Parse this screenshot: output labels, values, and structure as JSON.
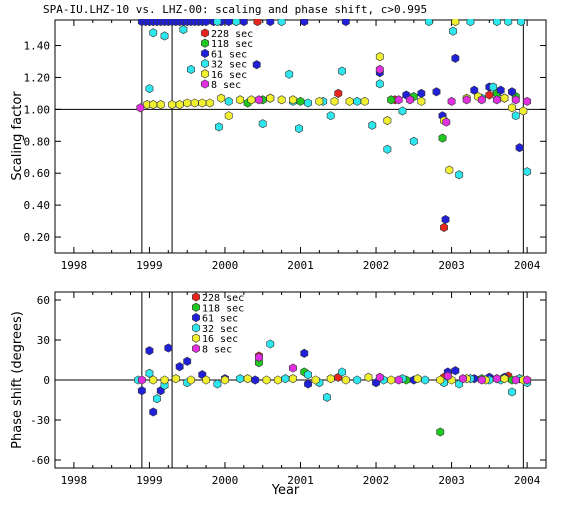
{
  "figure": {
    "title": "SPA-IU.LHZ-10 vs. LHZ-00: scaling and phase shift, c>0.995"
  },
  "chart_data": [
    {
      "type": "scatter",
      "ylabel": "Scaling factor",
      "xlabel": "",
      "xlim": [
        1997.75,
        2004.25
      ],
      "ylim": [
        0.1,
        1.56
      ],
      "x_ticks": [
        1998,
        1999,
        2000,
        2001,
        2002,
        2003,
        2004
      ],
      "y_ticks": [
        "0.20",
        "0.40",
        "0.60",
        "0.80",
        "1.00",
        "1.20",
        "1.40"
      ],
      "reference_line": 1.0,
      "vertical_lines": [
        1998.9,
        1999.3,
        2003.95
      ],
      "legend": [
        {
          "label": "228 sec",
          "color": "#e8261e"
        },
        {
          "label": "118 sec",
          "color": "#1ec81e"
        },
        {
          "label": "61 sec",
          "color": "#2020d8"
        },
        {
          "label": "32 sec",
          "color": "#2ee6ee"
        },
        {
          "label": "16 sec",
          "color": "#f0f030"
        },
        {
          "label": "8 sec",
          "color": "#e030e0"
        }
      ],
      "series": [
        {
          "period": "228 sec",
          "color": "#e8261e",
          "points": [
            [
              2000.43,
              1.55
            ],
            [
              2001.5,
              1.1
            ],
            [
              2002.25,
              1.06
            ],
            [
              2002.9,
              0.26
            ],
            [
              2003.5,
              1.09
            ],
            [
              2003.7,
              1.07
            ]
          ]
        },
        {
          "period": "118 sec",
          "color": "#1ec81e",
          "points": [
            [
              2000.3,
              1.04
            ],
            [
              2000.5,
              1.06
            ],
            [
              2001.0,
              1.05
            ],
            [
              2002.2,
              1.06
            ],
            [
              2002.5,
              1.08
            ],
            [
              2002.88,
              0.82
            ],
            [
              2003.6,
              1.1
            ],
            [
              2003.85,
              1.08
            ]
          ]
        },
        {
          "period": "61 sec",
          "color": "#2020d8",
          "points": [
            [
              1998.9,
              1.55
            ],
            [
              1998.95,
              1.55
            ],
            [
              1999.0,
              1.55
            ],
            [
              1999.05,
              1.55
            ],
            [
              1999.1,
              1.55
            ],
            [
              1999.15,
              1.55
            ],
            [
              1999.2,
              1.55
            ],
            [
              1999.25,
              1.55
            ],
            [
              1999.3,
              1.55
            ],
            [
              1999.35,
              1.55
            ],
            [
              1999.4,
              1.55
            ],
            [
              1999.45,
              1.55
            ],
            [
              1999.5,
              1.55
            ],
            [
              1999.55,
              1.55
            ],
            [
              1999.6,
              1.55
            ],
            [
              1999.65,
              1.55
            ],
            [
              1999.7,
              1.55
            ],
            [
              1999.75,
              1.55
            ],
            [
              1999.85,
              1.55
            ],
            [
              1999.95,
              1.55
            ],
            [
              2000.05,
              1.55
            ],
            [
              2000.15,
              1.55
            ],
            [
              2000.25,
              1.55
            ],
            [
              2000.6,
              1.55
            ],
            [
              2001.05,
              1.55
            ],
            [
              2001.6,
              1.55
            ],
            [
              2000.42,
              1.28
            ],
            [
              2002.05,
              1.23
            ],
            [
              2002.4,
              1.09
            ],
            [
              2002.6,
              1.1
            ],
            [
              2002.8,
              1.11
            ],
            [
              2002.88,
              0.96
            ],
            [
              2002.92,
              0.31
            ],
            [
              2003.05,
              1.32
            ],
            [
              2003.3,
              1.12
            ],
            [
              2003.5,
              1.14
            ],
            [
              2003.65,
              1.12
            ],
            [
              2003.8,
              1.11
            ],
            [
              2003.9,
              0.76
            ]
          ]
        },
        {
          "period": "32 sec",
          "color": "#2ee6ee",
          "points": [
            [
              1999.0,
              1.13
            ],
            [
              1999.05,
              1.48
            ],
            [
              1999.2,
              1.46
            ],
            [
              1999.45,
              1.5
            ],
            [
              1999.55,
              1.25
            ],
            [
              1999.9,
              1.55
            ],
            [
              1999.92,
              0.89
            ],
            [
              2000.05,
              1.05
            ],
            [
              2000.15,
              1.55
            ],
            [
              2000.5,
              0.91
            ],
            [
              2000.6,
              1.07
            ],
            [
              2000.75,
              1.55
            ],
            [
              2000.85,
              1.22
            ],
            [
              2000.9,
              1.05
            ],
            [
              2000.98,
              0.88
            ],
            [
              2001.1,
              1.04
            ],
            [
              2001.3,
              1.05
            ],
            [
              2001.4,
              0.96
            ],
            [
              2001.55,
              1.24
            ],
            [
              2001.75,
              1.05
            ],
            [
              2001.95,
              0.9
            ],
            [
              2002.05,
              1.16
            ],
            [
              2002.15,
              0.75
            ],
            [
              2002.35,
              0.99
            ],
            [
              2002.5,
              0.8
            ],
            [
              2002.7,
              1.55
            ],
            [
              2003.02,
              1.49
            ],
            [
              2003.1,
              0.59
            ],
            [
              2003.25,
              1.55
            ],
            [
              2003.4,
              1.07
            ],
            [
              2003.55,
              1.14
            ],
            [
              2003.6,
              1.55
            ],
            [
              2003.75,
              1.55
            ],
            [
              2003.85,
              0.96
            ],
            [
              2003.92,
              1.55
            ],
            [
              2004.0,
              0.61
            ]
          ]
        },
        {
          "period": "16 sec",
          "color": "#f0f030",
          "points": [
            [
              1998.97,
              1.03
            ],
            [
              1999.05,
              1.03
            ],
            [
              1999.15,
              1.03
            ],
            [
              1999.3,
              1.03
            ],
            [
              1999.4,
              1.03
            ],
            [
              1999.5,
              1.04
            ],
            [
              1999.6,
              1.04
            ],
            [
              1999.7,
              1.04
            ],
            [
              1999.8,
              1.04
            ],
            [
              1999.95,
              1.07
            ],
            [
              2000.05,
              0.96
            ],
            [
              2000.2,
              1.06
            ],
            [
              2000.35,
              1.06
            ],
            [
              2000.6,
              1.07
            ],
            [
              2000.75,
              1.06
            ],
            [
              2000.9,
              1.06
            ],
            [
              2001.25,
              1.05
            ],
            [
              2001.45,
              1.05
            ],
            [
              2001.65,
              1.05
            ],
            [
              2001.85,
              1.05
            ],
            [
              2002.05,
              1.33
            ],
            [
              2002.15,
              0.93
            ],
            [
              2002.6,
              1.05
            ],
            [
              2002.9,
              0.93
            ],
            [
              2002.97,
              0.62
            ],
            [
              2003.05,
              1.55
            ],
            [
              2003.2,
              1.07
            ],
            [
              2003.35,
              1.08
            ],
            [
              2003.7,
              1.07
            ],
            [
              2003.8,
              1.01
            ],
            [
              2003.95,
              0.99
            ]
          ]
        },
        {
          "period": "8 sec",
          "color": "#e030e0",
          "points": [
            [
              1998.88,
              1.01
            ],
            [
              2000.45,
              1.06
            ],
            [
              2002.05,
              1.25
            ],
            [
              2002.3,
              1.06
            ],
            [
              2002.45,
              1.06
            ],
            [
              2002.93,
              0.92
            ],
            [
              2003.0,
              1.05
            ],
            [
              2003.2,
              1.06
            ],
            [
              2003.4,
              1.06
            ],
            [
              2003.6,
              1.06
            ],
            [
              2003.85,
              1.06
            ],
            [
              2004.0,
              1.05
            ]
          ]
        }
      ]
    },
    {
      "type": "scatter",
      "ylabel": "Phase shift (degrees)",
      "xlabel": "Year",
      "xlim": [
        1997.75,
        2004.25
      ],
      "ylim": [
        -66,
        66
      ],
      "x_ticks": [
        1998,
        1999,
        2000,
        2001,
        2002,
        2003,
        2004
      ],
      "y_ticks": [
        "-60",
        "-30",
        "0",
        "30",
        "60"
      ],
      "reference_line": 0,
      "vertical_lines": [
        1998.9,
        1999.3,
        2003.95
      ],
      "legend": [
        {
          "label": "228 sec",
          "color": "#e8261e"
        },
        {
          "label": "118 sec",
          "color": "#1ec81e"
        },
        {
          "label": "61 sec",
          "color": "#2020d8"
        },
        {
          "label": "32 sec",
          "color": "#2ee6ee"
        },
        {
          "label": "16 sec",
          "color": "#f0f030"
        },
        {
          "label": "8 sec",
          "color": "#e030e0"
        }
      ],
      "series": [
        {
          "period": "228 sec",
          "color": "#e8261e",
          "points": [
            [
              2000.45,
              18
            ],
            [
              2001.5,
              2
            ],
            [
              2002.9,
              2
            ],
            [
              2003.6,
              1
            ],
            [
              2003.75,
              3
            ]
          ]
        },
        {
          "period": "118 sec",
          "color": "#1ec81e",
          "points": [
            [
              2000.45,
              13
            ],
            [
              2001.05,
              6
            ],
            [
              2002.4,
              0
            ],
            [
              2002.85,
              -39
            ],
            [
              2003.4,
              1
            ],
            [
              2003.8,
              0
            ]
          ]
        },
        {
          "period": "61 sec",
          "color": "#2020d8",
          "points": [
            [
              1998.9,
              -8
            ],
            [
              1999.0,
              22
            ],
            [
              1999.05,
              -24
            ],
            [
              1999.15,
              -8
            ],
            [
              1999.25,
              24
            ],
            [
              1999.4,
              10
            ],
            [
              1999.5,
              14
            ],
            [
              1999.7,
              4
            ],
            [
              2000.0,
              1
            ],
            [
              2000.4,
              0
            ],
            [
              2001.05,
              20
            ],
            [
              2001.1,
              -3
            ],
            [
              2002.0,
              -2
            ],
            [
              2002.5,
              0
            ],
            [
              2002.95,
              6
            ],
            [
              2003.05,
              7
            ],
            [
              2003.3,
              1
            ],
            [
              2003.5,
              2
            ],
            [
              2003.7,
              2
            ],
            [
              2003.9,
              1
            ]
          ]
        },
        {
          "period": "32 sec",
          "color": "#2ee6ee",
          "points": [
            [
              1998.85,
              0
            ],
            [
              1999.0,
              5
            ],
            [
              1999.1,
              -14
            ],
            [
              1999.2,
              -4
            ],
            [
              1999.5,
              -2
            ],
            [
              1999.9,
              -3
            ],
            [
              2000.2,
              1
            ],
            [
              2000.6,
              27
            ],
            [
              2000.8,
              1
            ],
            [
              2001.1,
              4
            ],
            [
              2001.25,
              -2
            ],
            [
              2001.35,
              -13
            ],
            [
              2001.55,
              6
            ],
            [
              2001.75,
              0
            ],
            [
              2002.1,
              0
            ],
            [
              2002.35,
              1
            ],
            [
              2002.65,
              0
            ],
            [
              2002.9,
              -2
            ],
            [
              2003.1,
              -3
            ],
            [
              2003.25,
              1
            ],
            [
              2003.5,
              0
            ],
            [
              2003.65,
              0
            ],
            [
              2003.8,
              -9
            ],
            [
              2003.9,
              1
            ],
            [
              2004.0,
              -2
            ]
          ]
        },
        {
          "period": "16 sec",
          "color": "#f0f030",
          "points": [
            [
              1999.05,
              0
            ],
            [
              1999.2,
              0
            ],
            [
              1999.35,
              1
            ],
            [
              1999.55,
              0
            ],
            [
              1999.75,
              0
            ],
            [
              2000.0,
              0
            ],
            [
              2000.3,
              1
            ],
            [
              2000.55,
              0
            ],
            [
              2000.7,
              0
            ],
            [
              2000.9,
              1
            ],
            [
              2001.2,
              0
            ],
            [
              2001.4,
              1
            ],
            [
              2001.6,
              0
            ],
            [
              2001.9,
              2
            ],
            [
              2002.2,
              0
            ],
            [
              2002.55,
              1
            ],
            [
              2002.85,
              0
            ],
            [
              2003.0,
              0
            ],
            [
              2003.2,
              1
            ],
            [
              2003.45,
              0
            ],
            [
              2003.7,
              1
            ],
            [
              2003.95,
              0
            ]
          ]
        },
        {
          "period": "8 sec",
          "color": "#e030e0",
          "points": [
            [
              1998.9,
              0
            ],
            [
              2000.45,
              17
            ],
            [
              2000.9,
              9
            ],
            [
              2002.05,
              2
            ],
            [
              2002.3,
              0
            ],
            [
              2002.95,
              3
            ],
            [
              2003.15,
              1
            ],
            [
              2003.4,
              0
            ],
            [
              2003.6,
              1
            ],
            [
              2003.85,
              0
            ],
            [
              2004.0,
              0
            ]
          ]
        }
      ]
    }
  ]
}
